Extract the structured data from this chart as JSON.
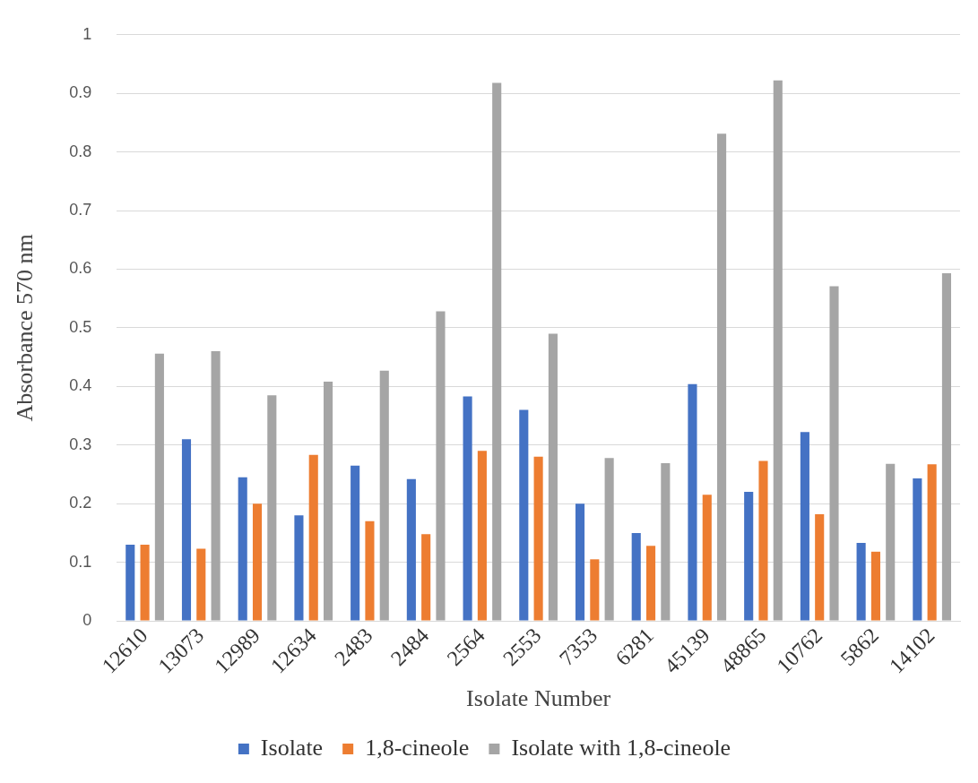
{
  "chart_data": {
    "type": "bar",
    "xlabel": "Isolate Number",
    "ylabel": "Absorbance 570 nm",
    "categories": [
      "12610",
      "13073",
      "12989",
      "12634",
      "2483",
      "2484",
      "2564",
      "2553",
      "7353",
      "6281",
      "45139",
      "48865",
      "10762",
      "5862",
      "14102"
    ],
    "series": [
      {
        "name": "Isolate",
        "color": "#4472c4",
        "values": [
          0.13,
          0.31,
          0.245,
          0.18,
          0.265,
          0.242,
          0.383,
          0.36,
          0.2,
          0.15,
          0.404,
          0.22,
          0.322,
          0.133,
          0.243
        ]
      },
      {
        "name": "1,8-cineole",
        "color": "#ed7d31",
        "values": [
          0.13,
          0.123,
          0.2,
          0.283,
          0.17,
          0.148,
          0.29,
          0.28,
          0.105,
          0.128,
          0.215,
          0.273,
          0.182,
          0.118,
          0.267
        ]
      },
      {
        "name": "Isolate with 1,8-cineole",
        "color": "#a5a5a5",
        "values": [
          0.456,
          0.46,
          0.385,
          0.408,
          0.427,
          0.528,
          0.918,
          0.49,
          0.278,
          0.269,
          0.831,
          0.922,
          0.571,
          0.268,
          0.593
        ]
      }
    ],
    "ylim": [
      0,
      1
    ],
    "yticks": [
      0,
      0.1,
      0.2,
      0.3,
      0.4,
      0.5,
      0.6,
      0.7,
      0.8,
      0.9,
      1
    ],
    "grid": "y",
    "legend": "bottom"
  }
}
